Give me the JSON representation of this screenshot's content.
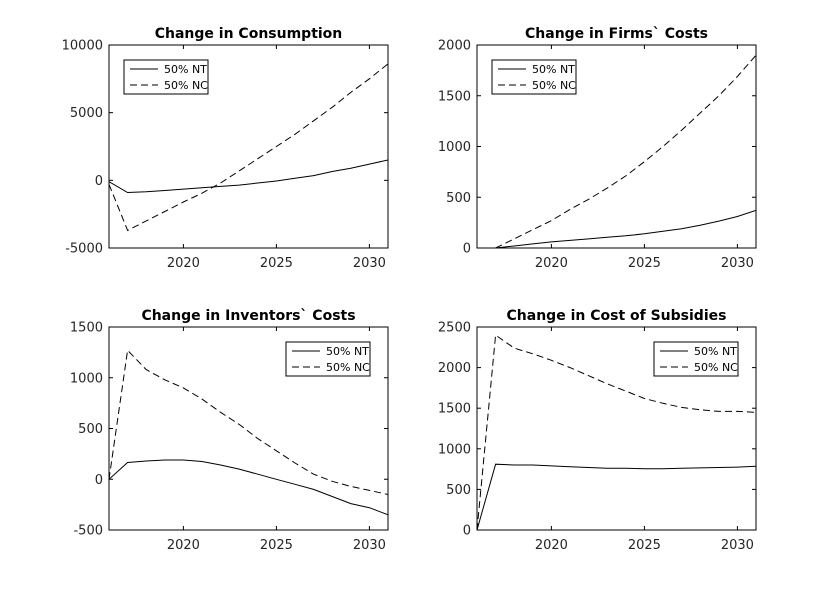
{
  "chart_data": [
    {
      "type": "line",
      "title": "Change in Consumption",
      "xlabel": "",
      "ylabel": "",
      "xlim": [
        2016,
        2031
      ],
      "ylim": [
        -5000,
        10000
      ],
      "xticks": [
        2020,
        2025,
        2030
      ],
      "yticks": [
        -5000,
        0,
        5000,
        10000
      ],
      "yticklabels": [
        "-5000",
        "0",
        "5000",
        "10000"
      ],
      "legend": {
        "placement": "top-left"
      },
      "series": [
        {
          "name": "50% NT",
          "style": "solid",
          "x": [
            2016,
            2017,
            2018,
            2019,
            2020,
            2021,
            2022,
            2023,
            2024,
            2025,
            2026,
            2027,
            2028,
            2029,
            2030,
            2031
          ],
          "y": [
            -100,
            -900,
            -850,
            -750,
            -650,
            -550,
            -450,
            -350,
            -200,
            -50,
            150,
            350,
            650,
            900,
            1200,
            1500
          ]
        },
        {
          "name": "50% NC",
          "style": "dashed",
          "x": [
            2016,
            2017,
            2018,
            2019,
            2020,
            2021,
            2022,
            2023,
            2024,
            2025,
            2026,
            2027,
            2028,
            2029,
            2030,
            2031
          ],
          "y": [
            -300,
            -3700,
            -3000,
            -2300,
            -1600,
            -950,
            -200,
            700,
            1600,
            2500,
            3400,
            4400,
            5400,
            6500,
            7500,
            8600
          ]
        }
      ]
    },
    {
      "type": "line",
      "title": "Change in Firms` Costs",
      "xlabel": "",
      "ylabel": "",
      "xlim": [
        2016,
        2031
      ],
      "ylim": [
        0,
        2000
      ],
      "xticks": [
        2020,
        2025,
        2030
      ],
      "yticks": [
        0,
        500,
        1000,
        1500,
        2000
      ],
      "yticklabels": [
        "0",
        "500",
        "1000",
        "1500",
        "2000"
      ],
      "legend": {
        "placement": "top-left"
      },
      "series": [
        {
          "name": "50% NT",
          "style": "solid",
          "x": [
            2017,
            2018,
            2019,
            2020,
            2021,
            2022,
            2023,
            2024,
            2025,
            2026,
            2027,
            2028,
            2029,
            2030,
            2031
          ],
          "y": [
            0,
            20,
            40,
            60,
            75,
            90,
            105,
            120,
            140,
            165,
            190,
            225,
            265,
            310,
            370
          ]
        },
        {
          "name": "50% NC",
          "style": "dashed",
          "x": [
            2017,
            2018,
            2019,
            2020,
            2021,
            2022,
            2023,
            2024,
            2025,
            2026,
            2027,
            2028,
            2029,
            2030,
            2031
          ],
          "y": [
            0,
            90,
            180,
            270,
            380,
            480,
            590,
            710,
            850,
            1000,
            1160,
            1330,
            1500,
            1690,
            1900
          ]
        }
      ]
    },
    {
      "type": "line",
      "title": "Change in Inventors` Costs",
      "xlabel": "",
      "ylabel": "",
      "xlim": [
        2016,
        2031
      ],
      "ylim": [
        -500,
        1500
      ],
      "xticks": [
        2020,
        2025,
        2030
      ],
      "yticks": [
        -500,
        0,
        500,
        1000,
        1500
      ],
      "yticklabels": [
        "-500",
        "0",
        "500",
        "1000",
        "1500"
      ],
      "legend": {
        "placement": "top-right"
      },
      "series": [
        {
          "name": "50% NT",
          "style": "solid",
          "x": [
            2016,
            2017,
            2018,
            2019,
            2020,
            2021,
            2022,
            2023,
            2024,
            2025,
            2026,
            2027,
            2028,
            2029,
            2030,
            2031
          ],
          "y": [
            0,
            165,
            180,
            190,
            190,
            175,
            140,
            100,
            50,
            0,
            -50,
            -100,
            -170,
            -240,
            -280,
            -350
          ]
        },
        {
          "name": "50% NC",
          "style": "dashed",
          "x": [
            2016,
            2017,
            2018,
            2019,
            2020,
            2021,
            2022,
            2023,
            2024,
            2025,
            2026,
            2027,
            2028,
            2029,
            2030,
            2031
          ],
          "y": [
            0,
            1270,
            1080,
            980,
            900,
            790,
            660,
            540,
            400,
            280,
            160,
            50,
            -20,
            -70,
            -110,
            -150
          ]
        }
      ]
    },
    {
      "type": "line",
      "title": "Change in Cost of Subsidies",
      "xlabel": "",
      "ylabel": "",
      "xlim": [
        2016,
        2031
      ],
      "ylim": [
        0,
        2500
      ],
      "xticks": [
        2020,
        2025,
        2030
      ],
      "yticks": [
        0,
        500,
        1000,
        1500,
        2000,
        2500
      ],
      "yticklabels": [
        "0",
        "500",
        "1000",
        "1500",
        "2000",
        "2500"
      ],
      "legend": {
        "placement": "top-right"
      },
      "series": [
        {
          "name": "50% NT",
          "style": "solid",
          "x": [
            2016,
            2017,
            2018,
            2019,
            2020,
            2021,
            2022,
            2023,
            2024,
            2025,
            2026,
            2027,
            2028,
            2029,
            2030,
            2031
          ],
          "y": [
            0,
            810,
            800,
            800,
            790,
            780,
            770,
            760,
            760,
            755,
            755,
            760,
            765,
            770,
            775,
            785
          ]
        },
        {
          "name": "50% NC",
          "style": "dashed",
          "x": [
            2016,
            2017,
            2018,
            2019,
            2020,
            2021,
            2022,
            2023,
            2024,
            2025,
            2026,
            2027,
            2028,
            2029,
            2030,
            2031
          ],
          "y": [
            0,
            2400,
            2240,
            2170,
            2090,
            2000,
            1900,
            1800,
            1710,
            1620,
            1560,
            1510,
            1480,
            1460,
            1460,
            1450
          ]
        }
      ]
    }
  ]
}
